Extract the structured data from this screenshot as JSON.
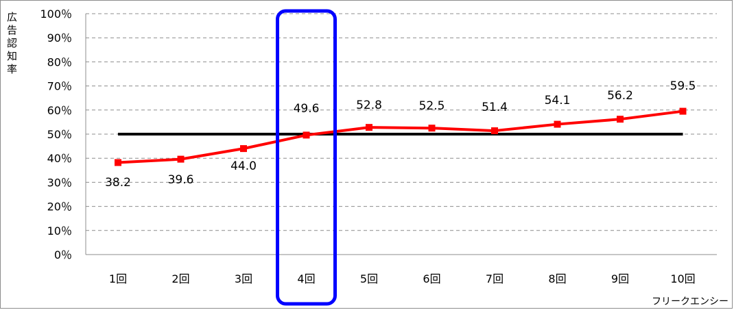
{
  "chart_data": {
    "type": "line",
    "categories": [
      "1回",
      "2回",
      "3回",
      "4回",
      "5回",
      "6回",
      "7回",
      "8回",
      "9回",
      "10回"
    ],
    "series": [
      {
        "values": [
          38.2,
          39.6,
          44.0,
          49.6,
          52.8,
          52.5,
          51.4,
          54.1,
          56.2,
          59.5
        ],
        "color": "#ff0000"
      }
    ],
    "data_labels": [
      "38.2",
      "39.6",
      "44.0",
      "49.6",
      "52.8",
      "52.5",
      "51.4",
      "54.1",
      "56.2",
      "59.5"
    ],
    "ylabel": "広告認知率",
    "xlabel": "フリークエンシー",
    "ylim": [
      0,
      100
    ],
    "ytick_labels": [
      "0％",
      "10％",
      "20％",
      "30％",
      "40％",
      "50％",
      "60％",
      "70％",
      "80％",
      "90％",
      "100％"
    ],
    "reference_line": {
      "value": 50,
      "color": "#000000"
    },
    "highlight_category": "4回",
    "highlight_color": "#0000ff",
    "grid": "horizontal-dashed",
    "legend": "none"
  }
}
